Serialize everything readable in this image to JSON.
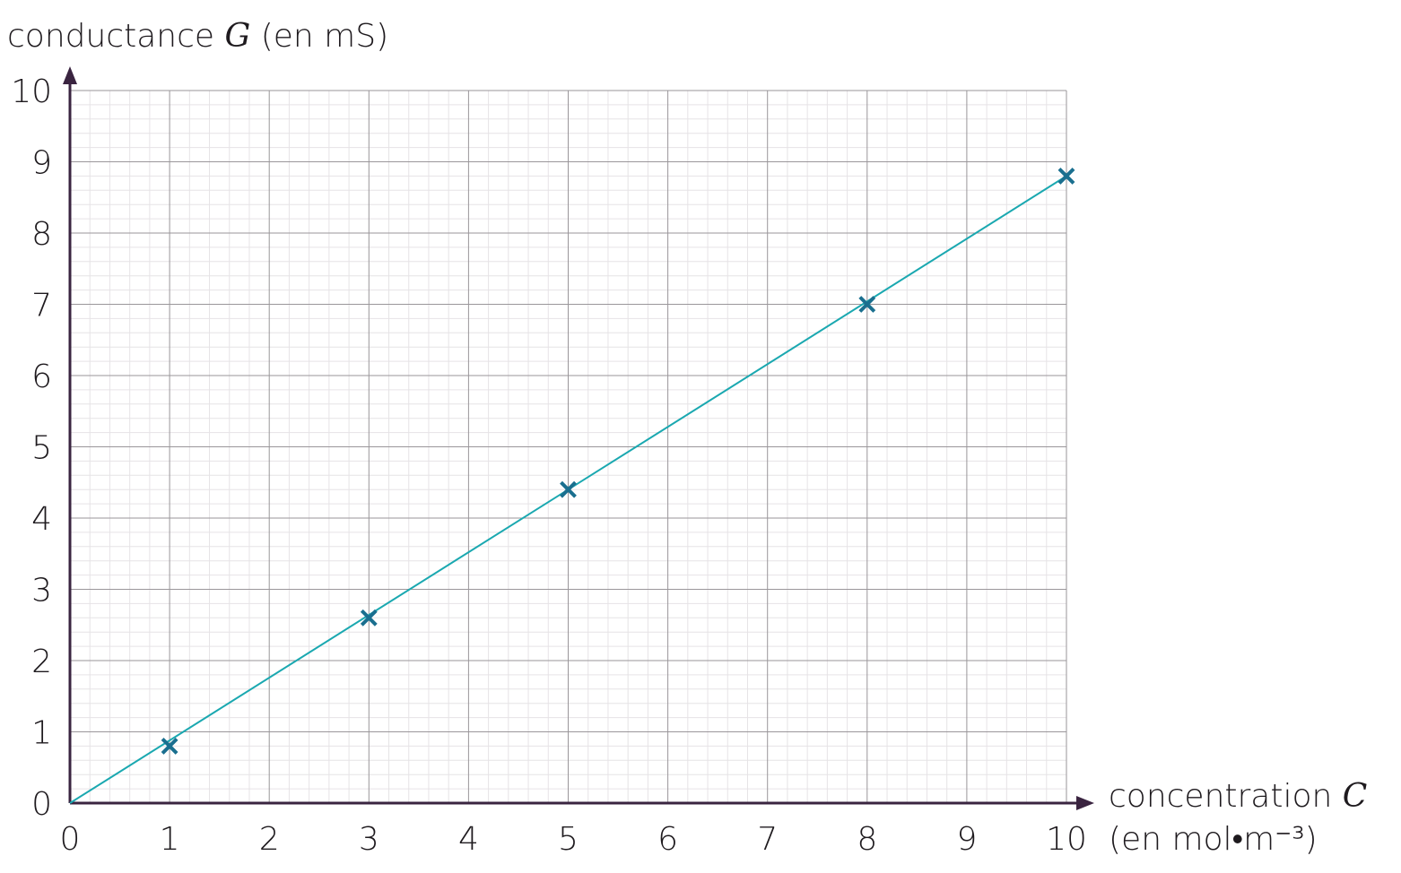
{
  "chart_data": {
    "type": "scatter",
    "y_label_text": "conductance",
    "y_label_symbol": "G",
    "y_label_unit": "(en mS)",
    "x_label_text": "concentration",
    "x_label_symbol": "C",
    "x_label_unit": "(en mol•m⁻³)",
    "x": [
      1,
      3,
      5,
      8,
      10
    ],
    "values": [
      0.8,
      2.6,
      4.4,
      7.0,
      8.8
    ],
    "color": "#1a6f8f",
    "fit_line": {
      "x": [
        0,
        10
      ],
      "y": [
        0,
        8.8
      ],
      "color": "#1aa8b0"
    },
    "xlim": [
      0,
      10
    ],
    "ylim": [
      0,
      10
    ],
    "xticks": [
      0,
      1,
      2,
      3,
      4,
      5,
      6,
      7,
      8,
      9,
      10
    ],
    "yticks": [
      0,
      1,
      2,
      3,
      4,
      5,
      6,
      7,
      8,
      9,
      10
    ],
    "grid": true,
    "minor_divisions": 5
  }
}
